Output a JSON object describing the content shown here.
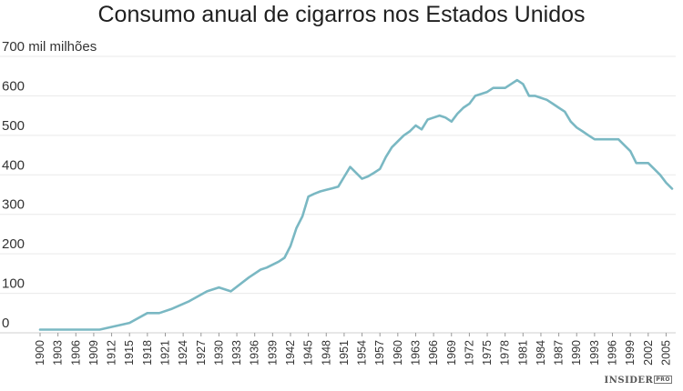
{
  "chart_data": {
    "type": "line",
    "title": "Consumo anual de cigarros nos Estados Unidos",
    "ylabel": "mil milhões",
    "xlabel": "",
    "ylim": [
      0,
      700
    ],
    "yticks": [
      0,
      100,
      200,
      300,
      400,
      500,
      600,
      700
    ],
    "top_tick_label": "700 mil milhões",
    "xlim": [
      1900,
      2006
    ],
    "xticks": [
      1900,
      1903,
      1906,
      1909,
      1912,
      1915,
      1918,
      1921,
      1924,
      1927,
      1930,
      1933,
      1936,
      1939,
      1942,
      1945,
      1948,
      1951,
      1954,
      1957,
      1960,
      1963,
      1966,
      1969,
      1972,
      1975,
      1978,
      1981,
      1984,
      1987,
      1990,
      1993,
      1996,
      1999,
      2002,
      2005
    ],
    "grid": true,
    "color": "#7ab8c3",
    "series": [
      {
        "x": [
          1900,
          1905,
          1910,
          1915,
          1918,
          1920,
          1922,
          1925,
          1928,
          1930,
          1932,
          1935,
          1937,
          1938,
          1940,
          1941,
          1942,
          1943,
          1944,
          1945,
          1946,
          1947,
          1948,
          1949,
          1950,
          1951,
          1952,
          1953,
          1954,
          1955,
          1956,
          1957,
          1958,
          1959,
          1960,
          1961,
          1962,
          1963,
          1964,
          1965,
          1966,
          1967,
          1968,
          1969,
          1970,
          1971,
          1972,
          1973,
          1974,
          1975,
          1976,
          1977,
          1978,
          1979,
          1980,
          1981,
          1982,
          1983,
          1984,
          1985,
          1986,
          1987,
          1988,
          1989,
          1990,
          1991,
          1992,
          1993,
          1994,
          1995,
          1996,
          1997,
          1998,
          1999,
          2000,
          2001,
          2002,
          2003,
          2004,
          2005,
          2006
        ],
        "y": [
          8,
          8,
          8,
          25,
          50,
          50,
          60,
          80,
          105,
          115,
          105,
          140,
          160,
          165,
          180,
          190,
          220,
          265,
          295,
          345,
          352,
          358,
          362,
          366,
          370,
          395,
          420,
          405,
          390,
          396,
          405,
          415,
          445,
          470,
          485,
          500,
          510,
          525,
          515,
          540,
          545,
          550,
          545,
          535,
          555,
          570,
          580,
          600,
          605,
          610,
          620,
          620,
          620,
          630,
          640,
          630,
          600,
          600,
          595,
          590,
          580,
          570,
          560,
          535,
          520,
          510,
          500,
          490,
          490,
          490,
          490,
          490,
          475,
          460,
          430,
          430,
          430,
          415,
          400,
          380,
          365
        ]
      }
    ],
    "source": "INSIDER",
    "source_badge": "PRO"
  }
}
